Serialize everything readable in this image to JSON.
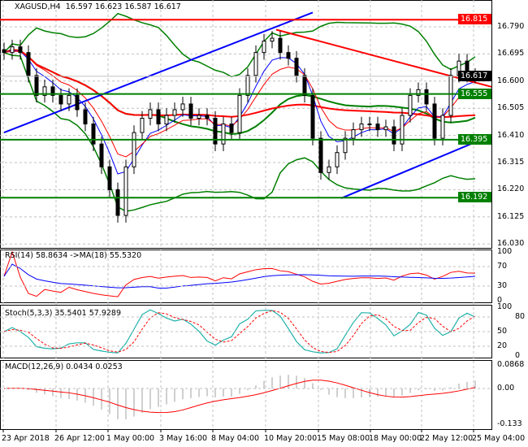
{
  "header": {
    "symbol": "XAGUSD,H4",
    "open": "16.597",
    "high": "16.623",
    "low": "16.587",
    "close": "16.617"
  },
  "chart_data": {
    "type": "candlestick",
    "price_axis": {
      "ticks": [
        "16.790",
        "16.695",
        "16.600",
        "16.505",
        "16.410",
        "16.315",
        "16.220",
        "16.125",
        "16.030"
      ],
      "range": [
        16.03,
        16.83
      ]
    },
    "time_axis": [
      "23 Apr 2018",
      "26 Apr 12:00",
      "1 May 00:00",
      "3 May 16:00",
      "8 May 04:00",
      "10 May 20:00",
      "15 May 08:00",
      "18 May 00:00",
      "22 May 12:00",
      "25 May 04:00"
    ],
    "closes": [
      16.7,
      16.72,
      16.7,
      16.62,
      16.55,
      16.58,
      16.55,
      16.52,
      16.55,
      16.5,
      16.45,
      16.38,
      16.3,
      16.22,
      16.13,
      16.3,
      16.42,
      16.47,
      16.5,
      16.45,
      16.48,
      16.5,
      16.52,
      16.47,
      16.48,
      16.47,
      16.38,
      16.45,
      16.42,
      16.55,
      16.62,
      16.7,
      16.74,
      16.75,
      16.7,
      16.68,
      16.62,
      16.55,
      16.4,
      16.28,
      16.3,
      16.35,
      16.4,
      16.43,
      16.45,
      16.45,
      16.43,
      16.44,
      16.38,
      16.48,
      16.55,
      16.57,
      16.52,
      16.4,
      16.48,
      16.62,
      16.67,
      16.62,
      16.617
    ],
    "levels": [
      {
        "price": "16.815",
        "color": "#ff0000"
      },
      {
        "price": "16.555",
        "color": "#008000"
      },
      {
        "price": "16.395",
        "color": "#008000"
      },
      {
        "price": "16.192",
        "color": "#008000"
      }
    ],
    "current_price": "16.617",
    "trendlines": [
      {
        "from": [
          0,
          16.42
        ],
        "to": [
          38,
          16.84
        ],
        "color": "#0000ff"
      },
      {
        "from": [
          41.5,
          16.19
        ],
        "to": [
          60,
          16.41
        ],
        "color": "#0000ff"
      },
      {
        "from": [
          33.5,
          16.78
        ],
        "to": [
          60,
          16.58
        ],
        "color": "#ff0000"
      }
    ],
    "rsi": {
      "label": "RSI(14) 58.8634  ->MA(18) 55.5320",
      "ticks": [
        "100",
        "70",
        "30",
        "0"
      ]
    },
    "stoch": {
      "label": "Stoch(5,3,3) 35.5401 57.9289",
      "ticks": [
        "100",
        "80",
        "50",
        "20",
        "0"
      ]
    },
    "macd": {
      "label": "MACD(12,26,9) 0.0434 0.0253",
      "ticks": [
        "0.0868",
        "0.00",
        "-0.133"
      ]
    }
  }
}
